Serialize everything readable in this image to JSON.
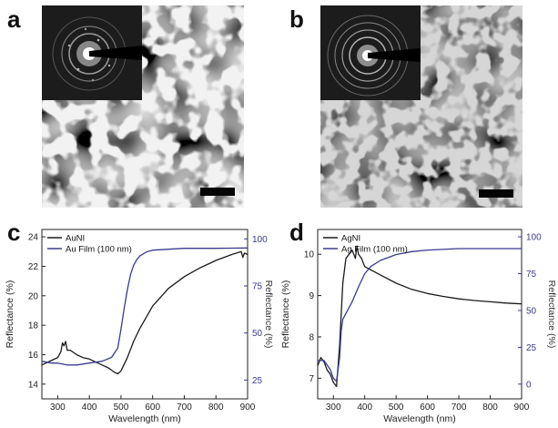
{
  "panels": {
    "a": {
      "letter": "a"
    },
    "b": {
      "letter": "b"
    },
    "c": {
      "letter": "c"
    },
    "d": {
      "letter": "d"
    }
  },
  "chart_data": [
    {
      "type": "line",
      "panel": "c",
      "xlabel": "Wavelength (nm)",
      "ylabel_left": "Reflectance (%)",
      "ylabel_right": "Reflectance (%)",
      "xlim": [
        250,
        900
      ],
      "ylim_left": [
        13,
        24.5
      ],
      "ylim_right": [
        15,
        105
      ],
      "xticks": [
        300,
        400,
        500,
        600,
        700,
        800,
        900
      ],
      "yticks_left": [
        14,
        16,
        18,
        20,
        22,
        24
      ],
      "yticks_right": [
        25,
        50,
        75,
        100
      ],
      "legend_position": "top-left",
      "series": [
        {
          "name": "AuNI",
          "axis": "left",
          "color": "#1a1a1a",
          "x": [
            250,
            280,
            300,
            310,
            315,
            320,
            325,
            330,
            340,
            360,
            380,
            400,
            420,
            440,
            460,
            480,
            490,
            500,
            520,
            540,
            560,
            600,
            650,
            700,
            750,
            800,
            850,
            880,
            885,
            890,
            900
          ],
          "y": [
            15.3,
            15.6,
            15.8,
            16.2,
            16.8,
            16.6,
            16.9,
            16.3,
            16.3,
            16.0,
            15.8,
            15.7,
            15.5,
            15.3,
            15.1,
            14.8,
            14.7,
            14.9,
            15.8,
            16.9,
            17.8,
            19.3,
            20.5,
            21.3,
            21.9,
            22.4,
            22.8,
            23.0,
            22.6,
            22.9,
            22.8
          ]
        },
        {
          "name": "Au Film (100 nm)",
          "axis": "right",
          "color": "#3a3a8f",
          "x": [
            250,
            280,
            300,
            330,
            360,
            400,
            440,
            470,
            490,
            500,
            510,
            520,
            530,
            540,
            550,
            560,
            580,
            600,
            650,
            700,
            800,
            900
          ],
          "y": [
            35,
            34,
            34,
            33,
            33,
            34,
            35,
            37,
            42,
            52,
            63,
            73,
            81,
            86,
            89,
            91,
            93,
            94,
            94.5,
            95,
            95,
            95.2
          ]
        }
      ]
    },
    {
      "type": "line",
      "panel": "d",
      "xlabel": "Wavelength (nm)",
      "ylabel_left": "Reflectance (%)",
      "ylabel_right": "Reflectance (%)",
      "xlim": [
        250,
        900
      ],
      "ylim_left": [
        6.5,
        10.6
      ],
      "ylim_right": [
        -10,
        105
      ],
      "xticks": [
        300,
        400,
        500,
        600,
        700,
        800,
        900
      ],
      "yticks_left": [
        7,
        8,
        9,
        10
      ],
      "yticks_right": [
        0,
        25,
        50,
        75,
        100
      ],
      "legend_position": "top-left",
      "series": [
        {
          "name": "AgNI",
          "axis": "left",
          "color": "#1a1a1a",
          "x": [
            250,
            260,
            270,
            280,
            290,
            300,
            310,
            320,
            330,
            340,
            350,
            360,
            370,
            375,
            380,
            390,
            400,
            450,
            500,
            550,
            600,
            650,
            700,
            750,
            800,
            850,
            900
          ],
          "y": [
            7.3,
            7.5,
            7.4,
            7.2,
            7.1,
            6.9,
            6.8,
            7.8,
            9.3,
            9.9,
            10.0,
            10.1,
            9.9,
            10.2,
            10.0,
            9.9,
            9.7,
            9.5,
            9.3,
            9.15,
            9.05,
            8.98,
            8.92,
            8.88,
            8.85,
            8.82,
            8.8
          ]
        },
        {
          "name": "Ag Film (100 nm)",
          "axis": "right",
          "color": "#3a3a8f",
          "x": [
            250,
            270,
            290,
            300,
            310,
            320,
            325,
            330,
            340,
            350,
            360,
            380,
            400,
            420,
            450,
            500,
            550,
            600,
            700,
            800,
            900
          ],
          "y": [
            16,
            16,
            10,
            4,
            2,
            18,
            36,
            44,
            48,
            52,
            56,
            66,
            75,
            80,
            84,
            88,
            90,
            91,
            92,
            92,
            92
          ]
        }
      ]
    }
  ]
}
